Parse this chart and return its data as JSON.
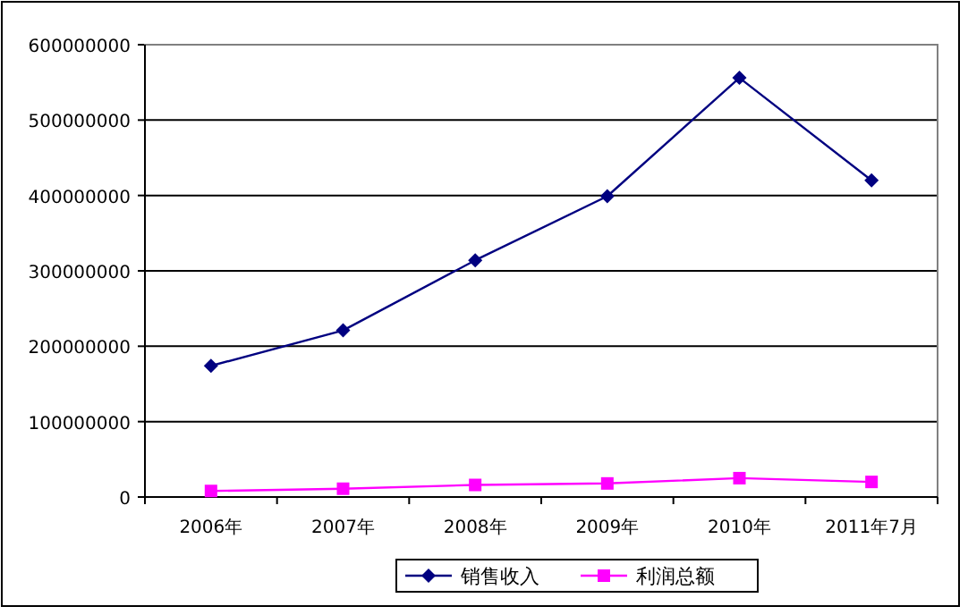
{
  "chart_data": {
    "type": "line",
    "categories": [
      "2006年",
      "2007年",
      "2008年",
      "2009年",
      "2010年",
      "2011年7月"
    ],
    "series": [
      {
        "name": "销售收入",
        "color": "#000080",
        "marker": "diamond",
        "values": [
          174000000,
          221000000,
          314000000,
          399000000,
          556000000,
          420000000
        ]
      },
      {
        "name": "利润总额",
        "color": "#ff00ff",
        "marker": "square",
        "values": [
          8000000,
          11000000,
          16000000,
          18000000,
          25000000,
          20000000
        ]
      }
    ],
    "ylim": [
      0,
      600000000
    ],
    "yticks": [
      0,
      100000000,
      200000000,
      300000000,
      400000000,
      500000000,
      600000000
    ],
    "grid": "y",
    "legend": "bottom"
  }
}
